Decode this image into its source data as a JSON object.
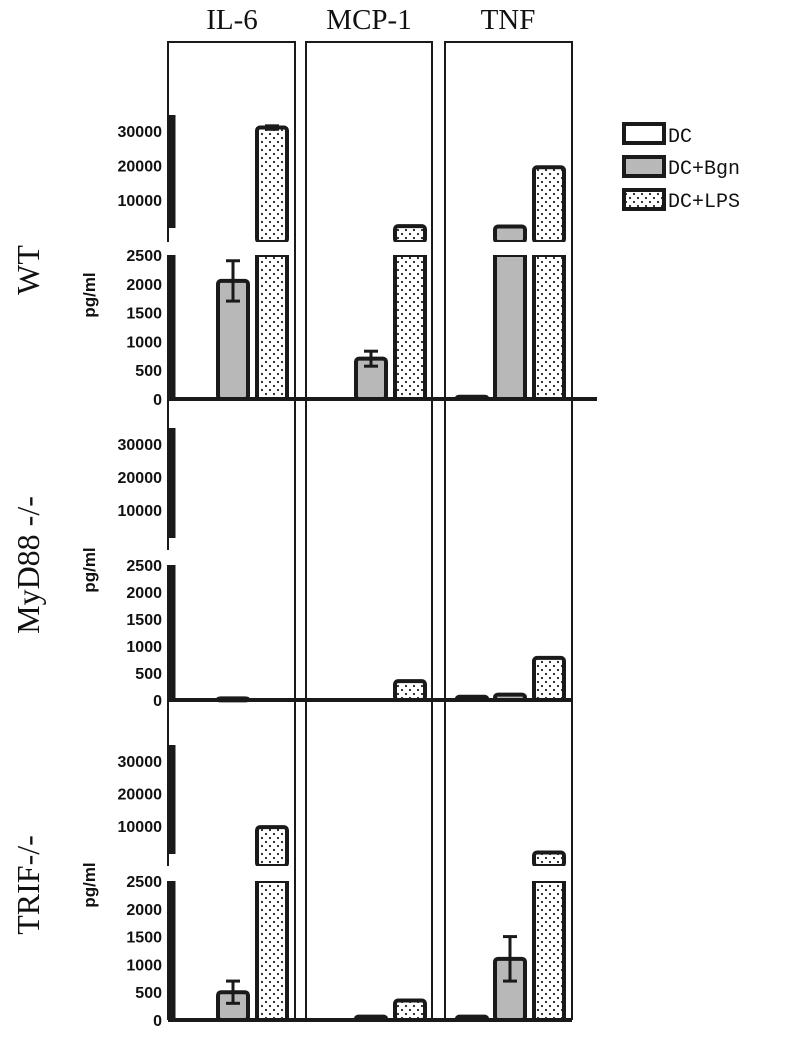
{
  "chart_data": {
    "type": "bar",
    "layout": "grid",
    "columns": [
      "IL-6",
      "MCP-1",
      "TNF"
    ],
    "rows": [
      "WT",
      "MyD88 -/-",
      "TRIF-/-"
    ],
    "ylabel": "pg/ml",
    "yaxis": {
      "scale": "broken",
      "lower_segment": {
        "range": [
          0,
          2500
        ],
        "ticks": [
          "0",
          "500",
          "1000",
          "1500",
          "2000",
          "2500"
        ]
      },
      "upper_segment": {
        "range": [
          10000,
          30000
        ],
        "ticks": [
          "10000",
          "20000",
          "30000"
        ]
      }
    },
    "legend": {
      "placement": "top-right",
      "entries": [
        {
          "label": "DC",
          "fill": "white"
        },
        {
          "label": "DC+Bgn",
          "fill": "gray"
        },
        {
          "label": "DC+LPS",
          "fill": "dotted"
        }
      ]
    },
    "colors": {
      "gray_fill": "#b8b8b8",
      "axis": "#1a1a1a",
      "background": "#ffffff"
    },
    "panels": [
      {
        "row": "WT",
        "column": "IL-6",
        "values": [
          0,
          2050,
          31000
        ],
        "errors": [
          0,
          350,
          500
        ]
      },
      {
        "row": "WT",
        "column": "MCP-1",
        "values": [
          0,
          700,
          3000
        ],
        "errors": [
          0,
          130,
          0
        ]
      },
      {
        "row": "WT",
        "column": "TNF",
        "values": [
          40,
          2900,
          19500
        ],
        "errors": [
          0,
          0,
          0
        ]
      },
      {
        "row": "MyD88 -/-",
        "column": "IL-6",
        "values": [
          0,
          30,
          0
        ],
        "errors": [
          0,
          0,
          0
        ]
      },
      {
        "row": "MyD88 -/-",
        "column": "MCP-1",
        "values": [
          0,
          0,
          350
        ],
        "errors": [
          0,
          0,
          0
        ]
      },
      {
        "row": "MyD88 -/-",
        "column": "TNF",
        "values": [
          60,
          100,
          780
        ],
        "errors": [
          0,
          0,
          0
        ]
      },
      {
        "row": "TRIF-/-",
        "column": "IL-6",
        "values": [
          0,
          500,
          9700
        ],
        "errors": [
          0,
          200,
          0
        ]
      },
      {
        "row": "TRIF-/-",
        "column": "MCP-1",
        "values": [
          0,
          60,
          350
        ],
        "errors": [
          0,
          0,
          0
        ]
      },
      {
        "row": "TRIF-/-",
        "column": "TNF",
        "values": [
          60,
          1100,
          2900
        ],
        "errors": [
          0,
          400,
          0
        ]
      }
    ]
  }
}
